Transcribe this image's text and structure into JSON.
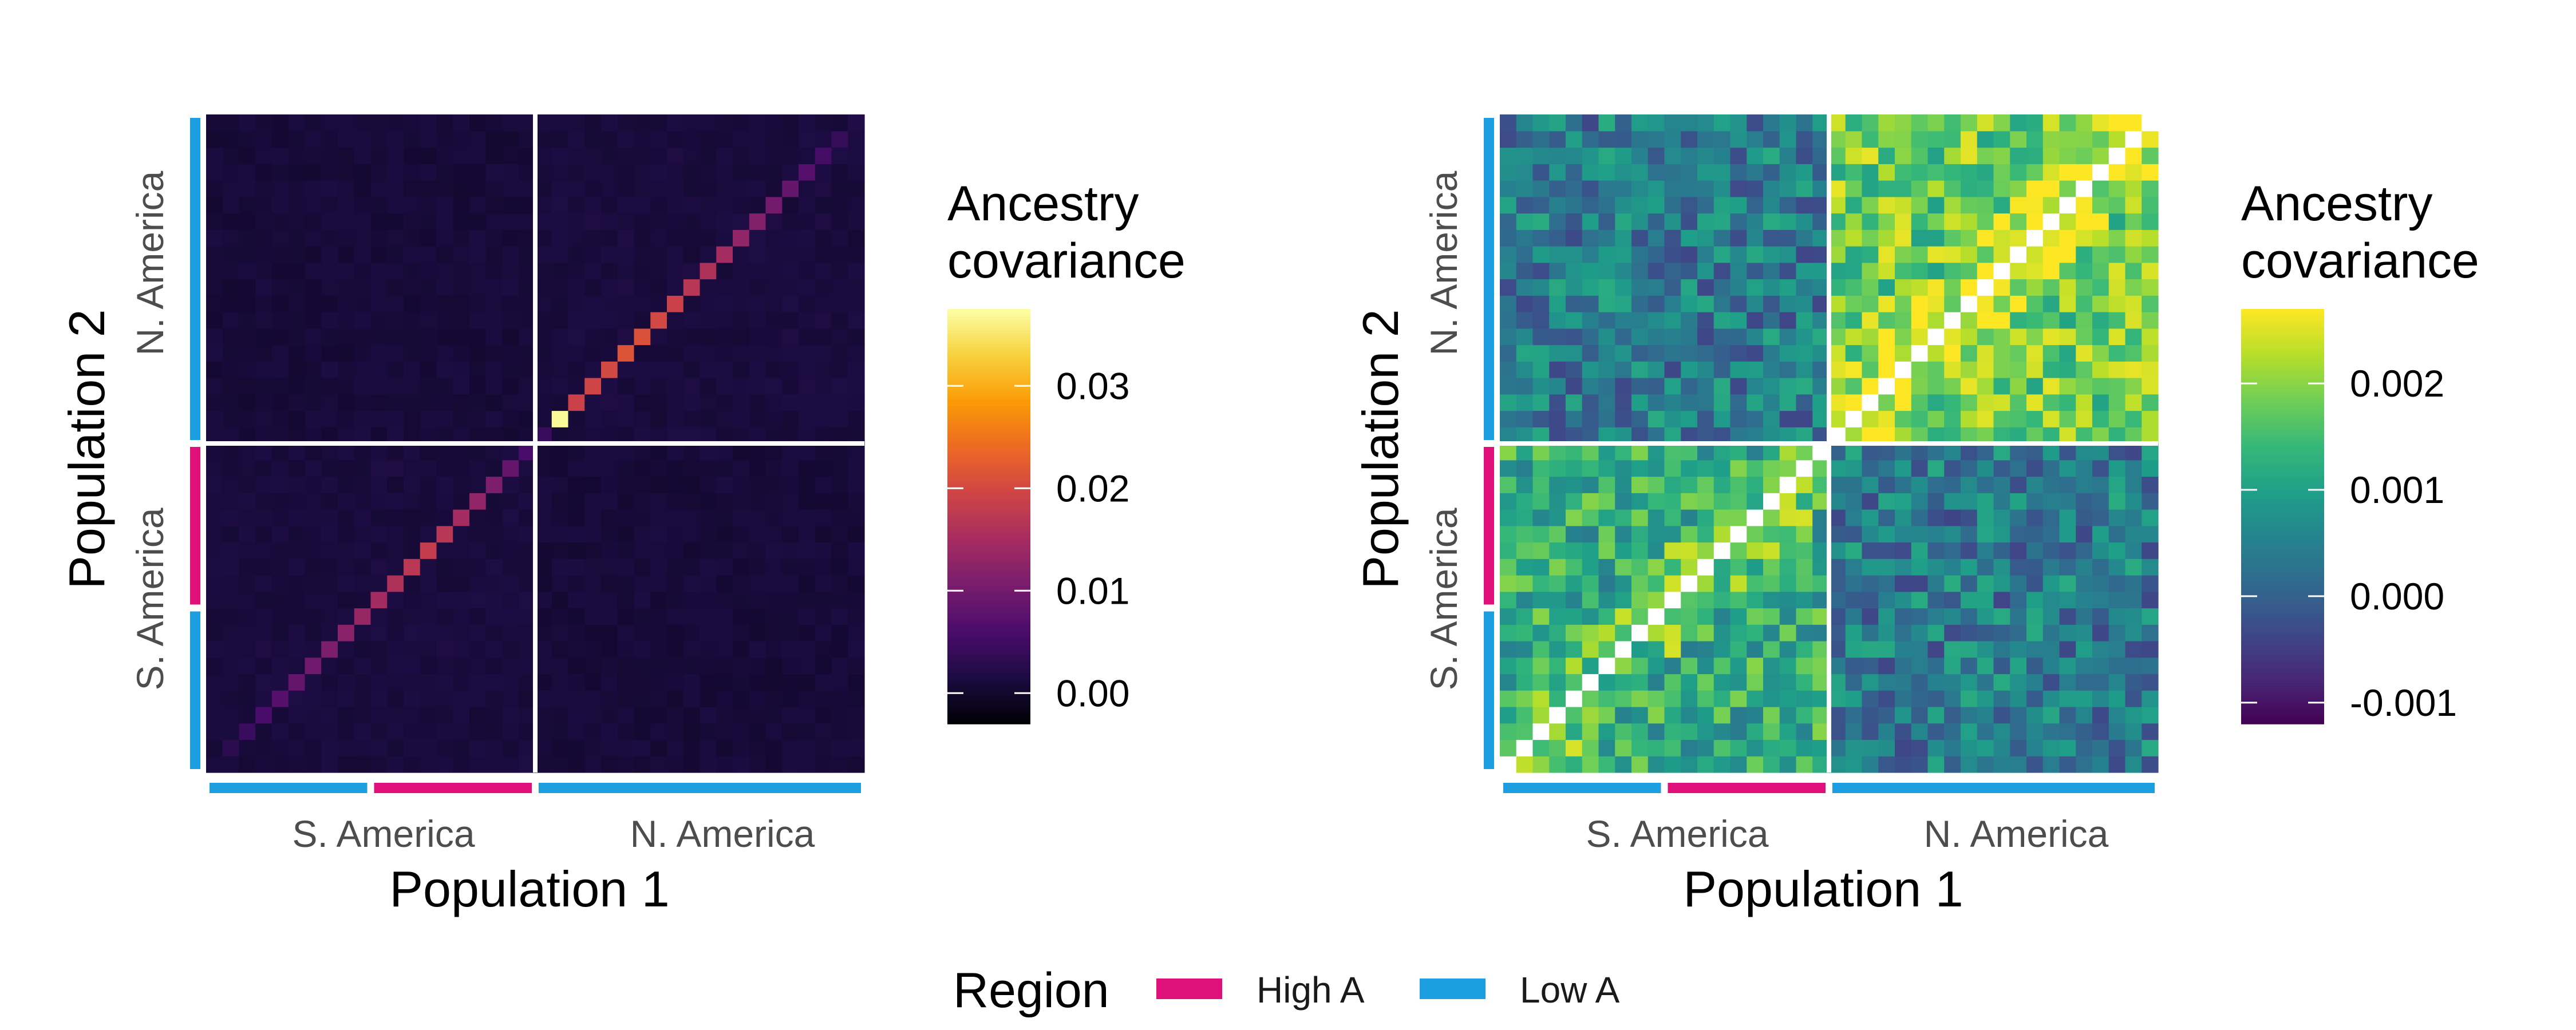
{
  "chart_data": [
    {
      "type": "heatmap",
      "xlabel": "Population 1",
      "ylabel": "Population 2",
      "x_groups": [
        "S. America",
        "N. America"
      ],
      "y_groups": [
        "S. America",
        "N. America"
      ],
      "populations_per_group": 20,
      "colormap": "inferno",
      "colorbar": {
        "title_lines": [
          "Ancestry",
          "covariance"
        ],
        "range": [
          -0.003,
          0.0375
        ],
        "ticks": [
          0.0,
          0.01,
          0.02,
          0.03
        ],
        "tick_labels": [
          "0.00",
          "0.01",
          "0.02",
          "0.03"
        ],
        "colors": [
          "#000004",
          "#1b0c41",
          "#4a0c6b",
          "#781c6d",
          "#a52c60",
          "#cf4446",
          "#ed6925",
          "#fb9b06",
          "#f7d13d",
          "#fcffa4"
        ]
      },
      "diagonal_values": [
        0.0012,
        0.003,
        0.0045,
        0.006,
        0.0072,
        0.0085,
        0.0098,
        0.011,
        0.0122,
        0.0135,
        0.0148,
        0.016,
        0.0172,
        0.0182,
        0.017,
        0.015,
        0.013,
        0.011,
        0.0085,
        0.006,
        0.0045,
        0.037,
        0.019,
        0.0195,
        0.02,
        0.0215,
        0.021,
        0.02,
        0.019,
        0.017,
        0.016,
        0.015,
        0.013,
        0.0115,
        0.01,
        0.0085,
        0.007,
        0.0055,
        0.004,
        0.002
      ],
      "off_diagonal_typical_range": [
        0.0,
        0.002
      ],
      "diagonal_shown": true
    },
    {
      "type": "heatmap",
      "xlabel": "Population 1",
      "ylabel": "Population 2",
      "x_groups": [
        "S. America",
        "N. America"
      ],
      "y_groups": [
        "S. America",
        "N. America"
      ],
      "populations_per_group": 20,
      "colormap": "viridis",
      "colorbar": {
        "title_lines": [
          "Ancestry",
          "covariance"
        ],
        "range": [
          -0.0012,
          0.0027
        ],
        "ticks": [
          -0.001,
          0.0,
          0.001,
          0.002
        ],
        "tick_labels": [
          "-0.001",
          "0.000",
          "0.001",
          "0.002"
        ],
        "colors": [
          "#440154",
          "#482878",
          "#3e4989",
          "#31688e",
          "#26828e",
          "#1f9e89",
          "#35b779",
          "#6ece58",
          "#b5de2b",
          "#fde725"
        ]
      },
      "block_mean_values": {
        "SA_SA": 0.0012,
        "NA_NA": 0.0018,
        "SA_NA": 0.0004
      },
      "value_range_observed": [
        -0.0011,
        0.0026
      ],
      "diagonal_shown": false
    }
  ],
  "region_legend": {
    "title": "Region",
    "items": [
      {
        "label": "High A",
        "color": "#e0107a"
      },
      {
        "label": "Low A",
        "color": "#1b9fe0"
      }
    ]
  },
  "region_bars": {
    "x": [
      {
        "region": "Low A",
        "count": 10
      },
      {
        "region": "High A",
        "count": 10
      },
      {
        "region": "Low A",
        "count": 20
      }
    ],
    "y": [
      {
        "region": "Low A",
        "count": 10
      },
      {
        "region": "High A",
        "count": 10
      },
      {
        "region": "Low A",
        "count": 20
      }
    ]
  }
}
